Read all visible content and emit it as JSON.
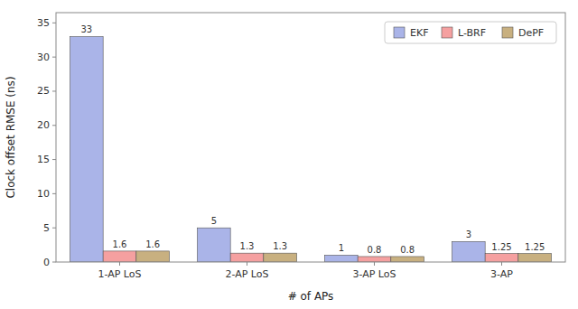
{
  "chart_data": {
    "type": "bar",
    "categories": [
      "1-AP LoS",
      "2-AP LoS",
      "3-AP LoS",
      "3-AP"
    ],
    "series": [
      {
        "name": "EKF",
        "color": "#aab4e8",
        "values": [
          33,
          5,
          1,
          3
        ]
      },
      {
        "name": "L-BRF",
        "color": "#f5a0a0",
        "values": [
          1.6,
          1.3,
          0.8,
          1.25
        ]
      },
      {
        "name": "DePF",
        "color": "#c8b080",
        "values": [
          1.6,
          1.3,
          0.8,
          1.25
        ]
      }
    ],
    "xlabel": "# of APs",
    "ylabel": "Clock offset RMSE (ns)",
    "ylim": [
      0,
      36.5
    ],
    "yticks": [
      0,
      5,
      10,
      15,
      20,
      25,
      30,
      35
    ],
    "grid": false,
    "legend": "top-right",
    "data_labels": true
  }
}
